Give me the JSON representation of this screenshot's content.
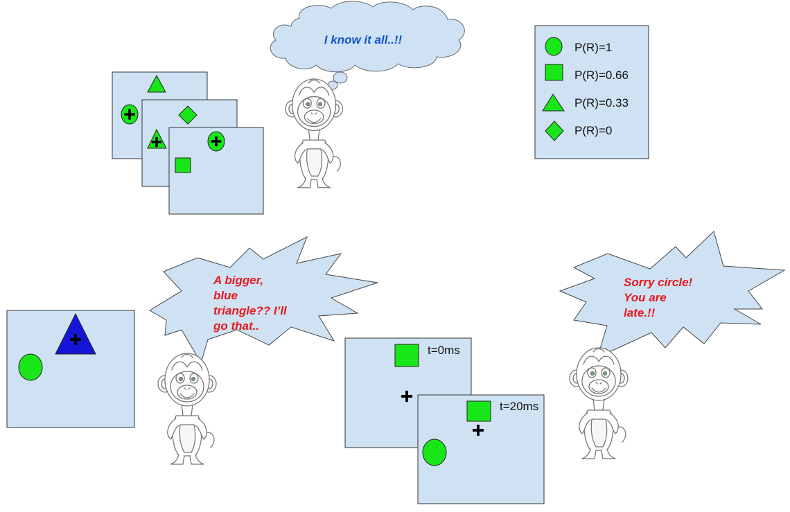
{
  "thought_bubble": {
    "text": "I know it all..!!",
    "color": "#1155cc"
  },
  "legend": {
    "items": [
      {
        "shape": "circle-icon",
        "label": "P(R)=1"
      },
      {
        "shape": "square-icon",
        "label": "P(R)=0.66"
      },
      {
        "shape": "triangle-icon",
        "label": "P(R)=0.33"
      },
      {
        "shape": "diamond-icon",
        "label": "P(R)=0"
      }
    ]
  },
  "speech_left": {
    "lines": [
      "A bigger,",
      "blue",
      "triangle?? I’ll",
      "go that.."
    ],
    "color": "#e8191d"
  },
  "speech_right": {
    "lines": [
      "Sorry circle!",
      "You are",
      "late.!!"
    ],
    "color": "#e8191d"
  },
  "timeline": {
    "label_first": "t=0ms",
    "label_second": "t=20ms"
  },
  "colors": {
    "panel": "#cfe2f3",
    "shape_green": "#19e619",
    "shape_blue": "#1515d9",
    "cloud": "#cfe2f3"
  },
  "icons": [
    "cursor-cross-icon",
    "monkey-figure"
  ]
}
